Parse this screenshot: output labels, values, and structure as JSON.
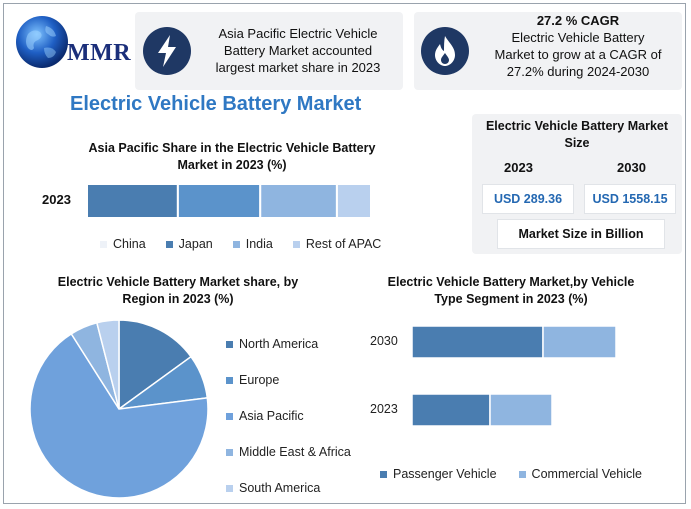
{
  "logo": {
    "text": "MMR"
  },
  "header_cards": [
    {
      "text_lines": [
        "Asia Pacific Electric Vehicle",
        "Battery Market accounted",
        "largest market share in 2023"
      ]
    },
    {
      "headline": "27.2 % CAGR",
      "text_lines": [
        "Electric Vehicle Battery",
        "Market to grow at a CAGR of",
        "27.2% during 2024-2030"
      ]
    }
  ],
  "main_title": "Electric Vehicle Battery Market",
  "market_size": {
    "title_lines": [
      "Electric Vehicle Battery Market",
      "Size"
    ],
    "years": [
      "2023",
      "2030"
    ],
    "values": [
      "USD 289.36",
      "USD 1558.15"
    ],
    "footer": "Market Size in Billion"
  },
  "colors": {
    "dark_blue": "#4a7db0",
    "mid_blue": "#5b93cb",
    "light_blue": "#8fb5e0",
    "pale_blue": "#b9d0ee",
    "pie_main": "#6fa1dc"
  },
  "chart_data": [
    {
      "type": "bar",
      "orientation": "horizontal-stacked",
      "title_lines": [
        "Asia Pacific Share in the Electric Vehicle Battery",
        "Market in 2023 (%)"
      ],
      "categories": [
        "2023"
      ],
      "series": [
        {
          "name": "China",
          "values": [
            32
          ]
        },
        {
          "name": "Japan",
          "values": [
            29
          ]
        },
        {
          "name": "India",
          "values": [
            27
          ]
        },
        {
          "name": "Rest of APAC",
          "values": [
            12
          ]
        }
      ],
      "legend": [
        "China",
        "Japan",
        "India",
        "Rest of APAC"
      ],
      "legend_position": "bottom"
    },
    {
      "type": "pie",
      "title_lines": [
        "Electric Vehicle Battery Market share, by",
        "Region in 2023  (%)"
      ],
      "categories": [
        "North America",
        "Europe",
        "Asia Pacific",
        "Middle East & Africa",
        "South America"
      ],
      "values": [
        15,
        8,
        68,
        5,
        4
      ],
      "legend_position": "right"
    },
    {
      "type": "bar",
      "orientation": "horizontal-stacked",
      "title_lines": [
        "Electric Vehicle Battery Market,by Vehicle",
        "Type Segment in 2023 (%)"
      ],
      "categories": [
        "2030",
        "2023"
      ],
      "series": [
        {
          "name": "Passenger Vehicle",
          "values": [
            131,
            78
          ]
        },
        {
          "name": "Commercial Vehicle",
          "values": [
            73,
            62
          ]
        }
      ],
      "legend": [
        "Passenger Vehicle",
        "Commercial Vehicle"
      ],
      "legend_position": "bottom"
    }
  ]
}
